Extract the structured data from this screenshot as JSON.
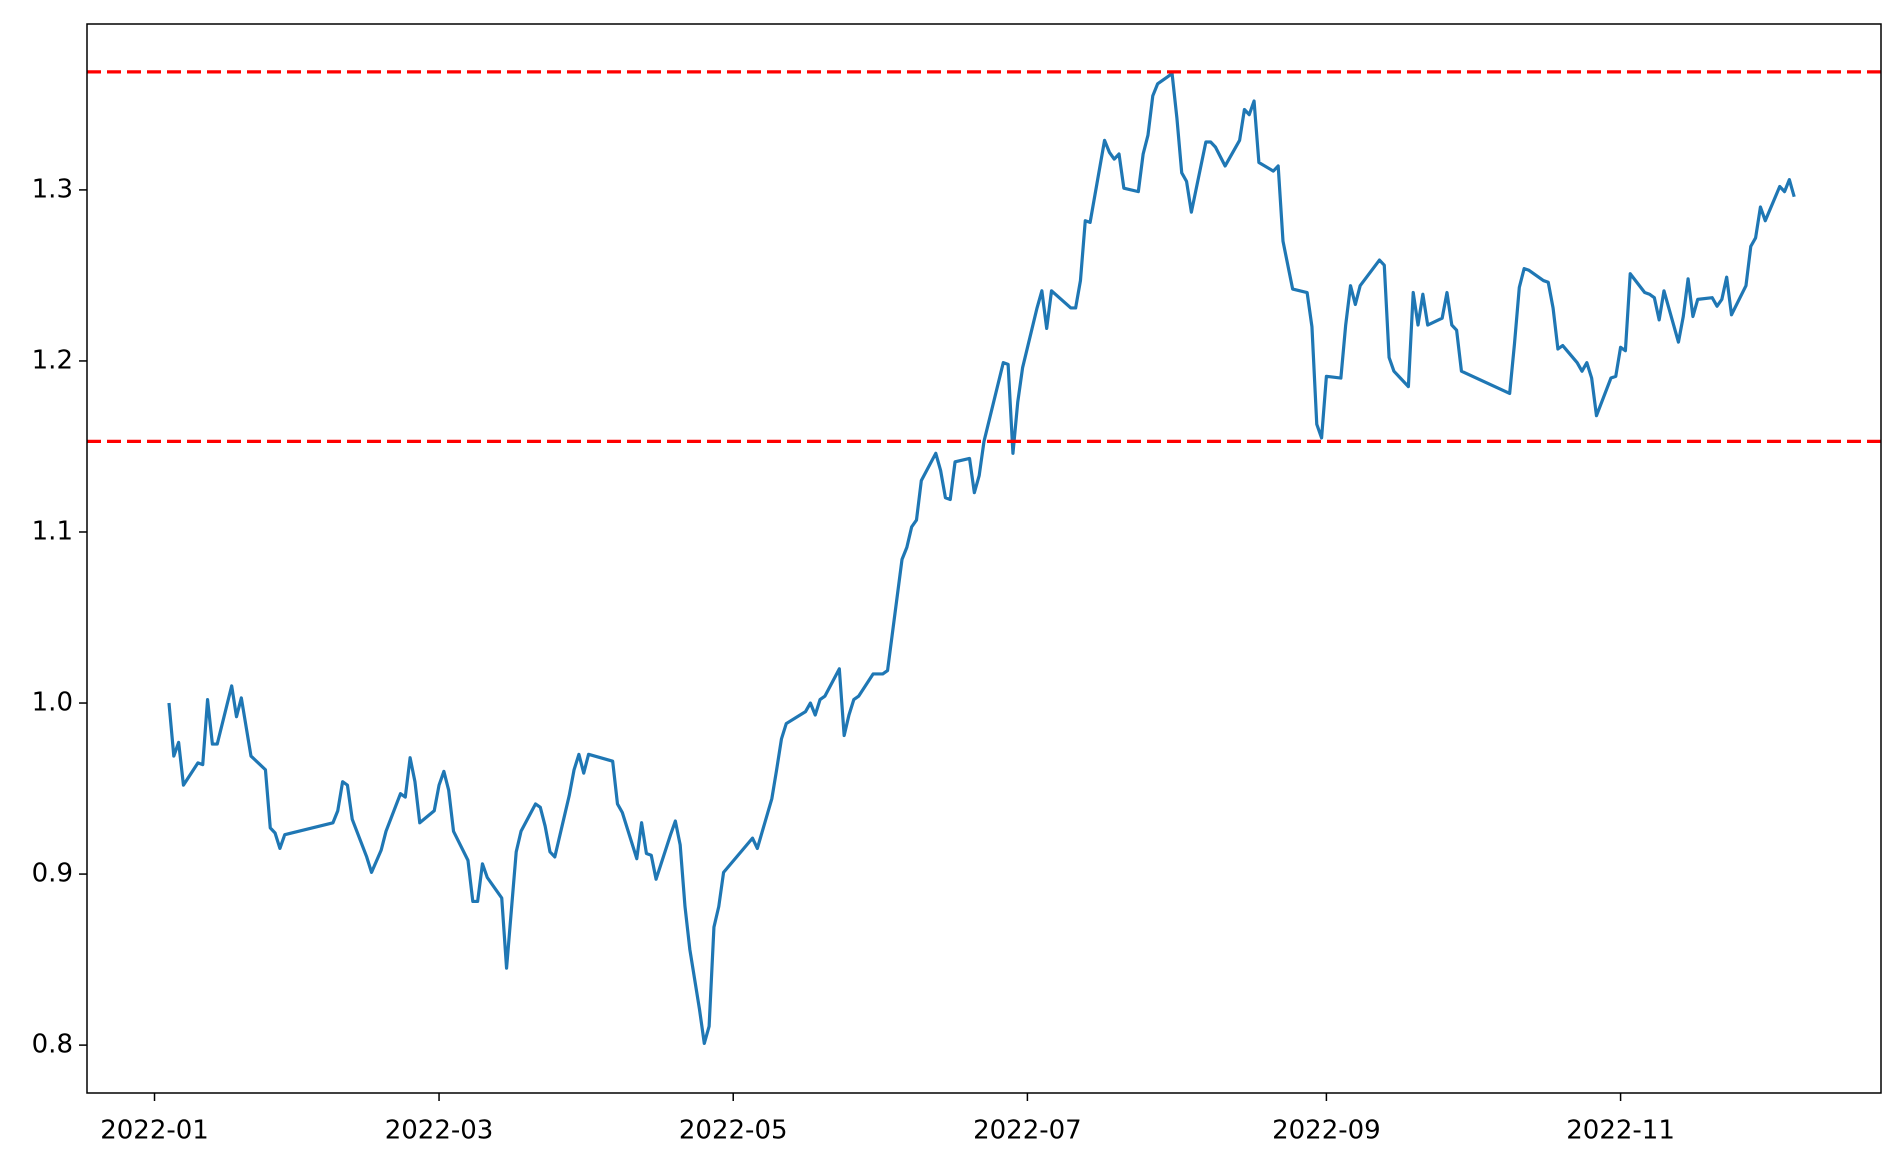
{
  "chart_data": {
    "type": "line",
    "x": [
      4,
      5,
      6,
      7,
      10,
      11,
      12,
      13,
      14,
      17,
      18,
      19,
      21,
      24,
      25,
      26,
      27,
      28,
      38,
      39,
      40,
      41,
      42,
      45,
      46,
      48,
      49,
      52,
      53,
      54,
      55,
      56,
      59,
      60,
      61,
      62,
      63,
      66,
      67,
      68,
      69,
      70,
      73,
      74,
      76,
      77,
      80,
      81,
      82,
      83,
      84,
      87,
      88,
      89,
      90,
      91,
      96,
      97,
      98,
      101,
      102,
      103,
      104,
      105,
      108,
      109,
      110,
      111,
      112,
      114,
      115,
      116,
      117,
      118,
      119,
      125,
      126,
      129,
      130,
      131,
      132,
      136,
      137,
      138,
      139,
      140,
      143,
      144,
      145,
      146,
      147,
      150,
      152,
      153,
      156,
      157,
      158,
      159,
      160,
      163,
      164,
      165,
      166,
      167,
      170,
      171,
      172,
      173,
      177,
      178,
      179,
      180,
      181,
      184,
      185,
      186,
      187,
      191,
      192,
      193,
      194,
      195,
      198,
      199,
      200,
      201,
      202,
      205,
      206,
      207,
      208,
      209,
      211,
      212,
      213,
      214,
      215,
      216,
      219,
      220,
      221,
      223,
      226,
      227,
      228,
      229,
      230,
      233,
      234,
      235,
      237,
      240,
      241,
      242,
      243,
      244,
      247,
      248,
      249,
      250,
      251,
      255,
      256,
      257,
      258,
      261,
      262,
      263,
      264,
      265,
      268,
      269,
      270,
      271,
      272,
      282,
      283,
      284,
      285,
      286,
      289,
      290,
      291,
      292,
      293,
      296,
      297,
      298,
      299,
      300,
      303,
      304,
      305,
      306,
      307,
      310,
      311,
      312,
      313,
      314,
      317,
      318,
      319,
      320,
      321,
      324,
      325,
      326,
      327,
      328,
      331,
      332,
      333,
      334,
      335,
      338,
      339,
      340,
      341
    ],
    "series": [
      {
        "color": "#1f77b4",
        "values": [
          1.0,
          0.969,
          0.977,
          0.952,
          0.965,
          0.964,
          1.002,
          0.976,
          0.976,
          1.01,
          0.992,
          1.003,
          0.969,
          0.961,
          0.927,
          0.924,
          0.915,
          0.923,
          0.93,
          0.937,
          0.954,
          0.952,
          0.932,
          0.91,
          0.901,
          0.914,
          0.925,
          0.947,
          0.945,
          0.968,
          0.954,
          0.93,
          0.937,
          0.952,
          0.96,
          0.949,
          0.925,
          0.908,
          0.884,
          0.884,
          0.906,
          0.898,
          0.886,
          0.845,
          0.913,
          0.925,
          0.941,
          0.939,
          0.928,
          0.913,
          0.91,
          0.946,
          0.961,
          0.97,
          0.959,
          0.97,
          0.966,
          0.941,
          0.936,
          0.909,
          0.93,
          0.912,
          0.911,
          0.897,
          0.923,
          0.931,
          0.917,
          0.881,
          0.856,
          0.821,
          0.801,
          0.811,
          0.869,
          0.881,
          0.901,
          0.921,
          0.915,
          0.944,
          0.961,
          0.979,
          0.988,
          0.995,
          1.0,
          0.993,
          1.002,
          1.004,
          1.02,
          0.981,
          0.993,
          1.002,
          1.004,
          1.017,
          1.017,
          1.019,
          1.084,
          1.091,
          1.103,
          1.107,
          1.13,
          1.146,
          1.136,
          1.12,
          1.119,
          1.141,
          1.143,
          1.123,
          1.133,
          1.153,
          1.199,
          1.198,
          1.146,
          1.176,
          1.196,
          1.231,
          1.241,
          1.219,
          1.241,
          1.231,
          1.231,
          1.247,
          1.282,
          1.281,
          1.329,
          1.322,
          1.318,
          1.321,
          1.301,
          1.299,
          1.321,
          1.332,
          1.355,
          1.362,
          1.366,
          1.368,
          1.342,
          1.31,
          1.305,
          1.287,
          1.328,
          1.328,
          1.325,
          1.314,
          1.329,
          1.347,
          1.344,
          1.352,
          1.316,
          1.311,
          1.314,
          1.27,
          1.242,
          1.24,
          1.22,
          1.163,
          1.155,
          1.191,
          1.19,
          1.221,
          1.244,
          1.233,
          1.244,
          1.259,
          1.256,
          1.202,
          1.194,
          1.185,
          1.24,
          1.221,
          1.239,
          1.221,
          1.225,
          1.24,
          1.221,
          1.218,
          1.194,
          1.181,
          1.21,
          1.243,
          1.254,
          1.253,
          1.247,
          1.246,
          1.231,
          1.207,
          1.209,
          1.199,
          1.194,
          1.199,
          1.19,
          1.168,
          1.19,
          1.191,
          1.208,
          1.206,
          1.251,
          1.24,
          1.239,
          1.237,
          1.224,
          1.241,
          1.211,
          1.226,
          1.248,
          1.226,
          1.236,
          1.237,
          1.232,
          1.236,
          1.249,
          1.227,
          1.244,
          1.267,
          1.272,
          1.29,
          1.282,
          1.302,
          1.299,
          1.306,
          1.296
        ]
      }
    ],
    "reference_lines": [
      {
        "y": 1.369,
        "color": "#ff0000"
      },
      {
        "y": 1.153,
        "color": "#ff0000"
      }
    ],
    "xlim": [
      -13,
      359
    ],
    "xticks": [
      {
        "value": 1,
        "label": "2022-01"
      },
      {
        "value": 60,
        "label": "2022-03"
      },
      {
        "value": 121,
        "label": "2022-05"
      },
      {
        "value": 182,
        "label": "2022-07"
      },
      {
        "value": 244,
        "label": "2022-09"
      },
      {
        "value": 305,
        "label": "2022-11"
      }
    ],
    "ylim": [
      0.772,
      1.397
    ],
    "yticks": [
      0.8,
      0.9,
      {
        "value": 1,
        "label": "1.0"
      },
      1.1,
      1.2,
      1.3
    ],
    "grid": false
  }
}
